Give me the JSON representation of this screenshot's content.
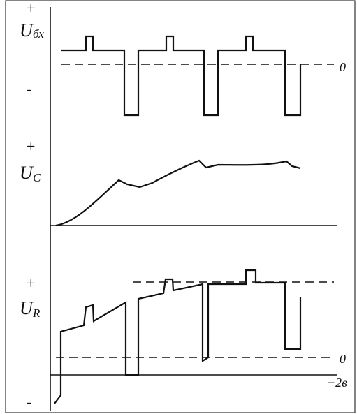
{
  "panels": [
    {
      "plus": "+",
      "label": "U",
      "sub": "бх",
      "minus": "-",
      "zero": "0"
    },
    {
      "plus": "+",
      "label": "U",
      "sub": "C"
    },
    {
      "plus": "+",
      "label": "U",
      "sub": "R",
      "zero": "0",
      "minus": "-",
      "level": "−2в"
    }
  ]
}
